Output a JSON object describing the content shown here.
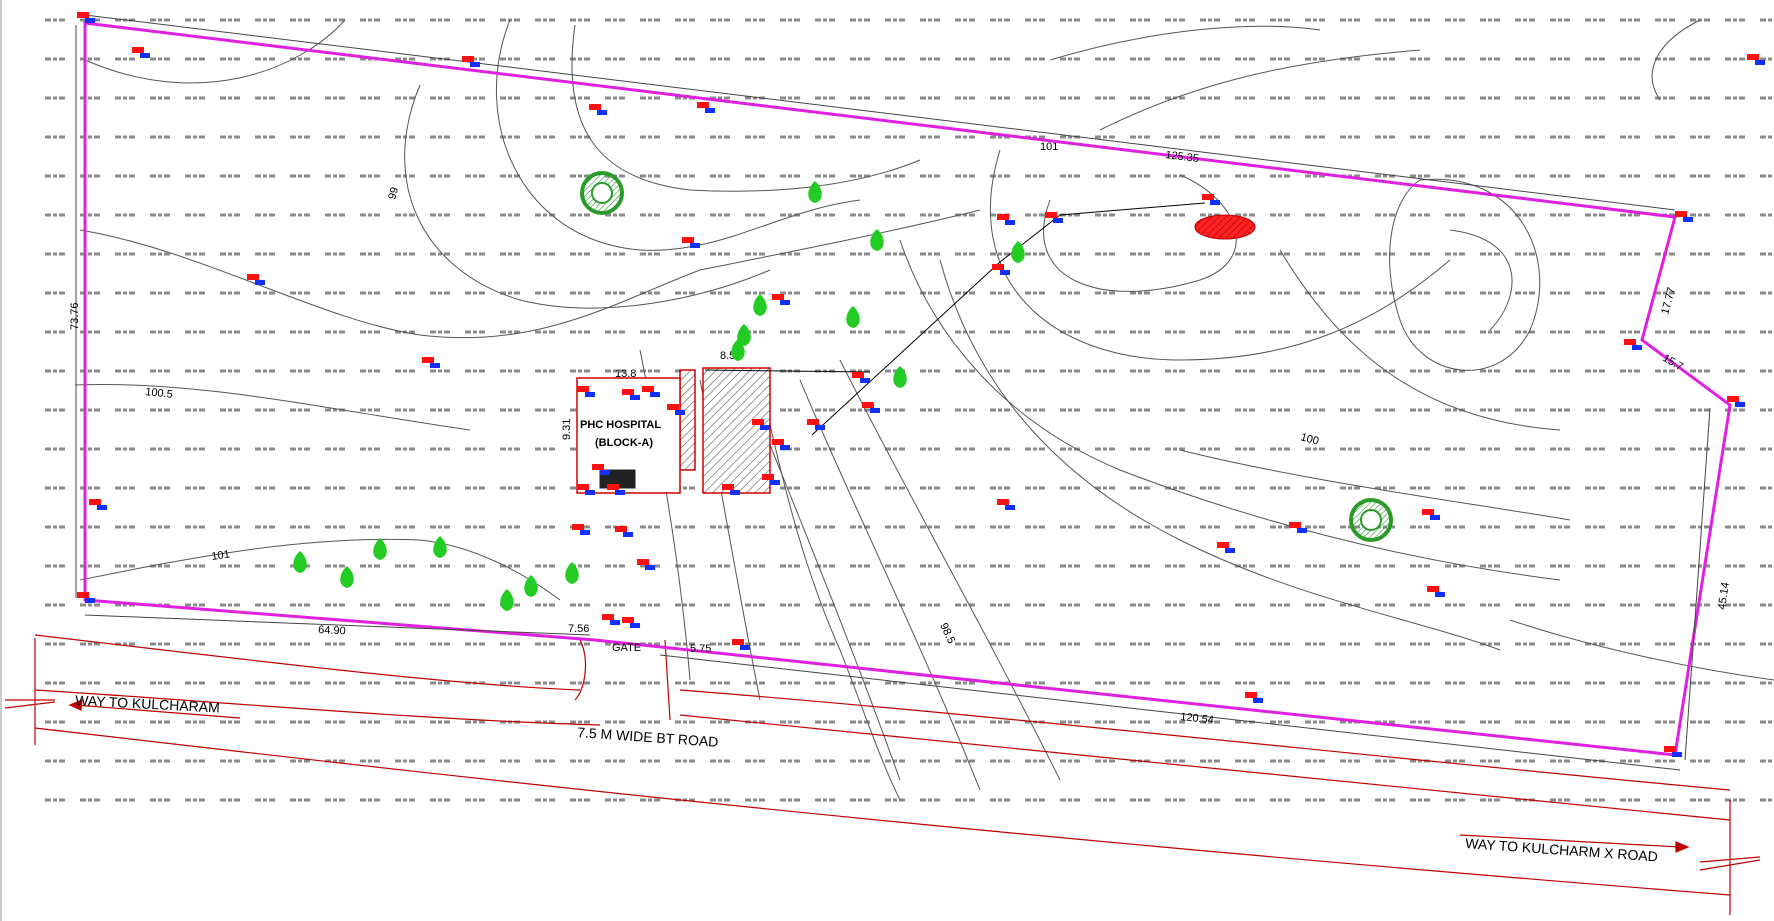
{
  "drawing": {
    "colors": {
      "boundary": "#e020e0",
      "road": "#c00000",
      "contour": "#555555",
      "grid_text": "#8a8a8a",
      "tree": "#22cc22",
      "marker_red": "#ff1010",
      "marker_blue": "#1030ff",
      "building_outline": "#d00000"
    },
    "icons": {
      "tree": "tree-icon",
      "survey_point": "survey-point-icon",
      "existing_tree_circle": "tree-circle-icon"
    }
  },
  "labels": {
    "building": [
      "PHC HOSPITAL",
      "(BLOCK-A)"
    ],
    "gate": "GATE",
    "road_width": "7.5 M WIDE BT ROAD",
    "way_left": "WAY TO KULCHARAM",
    "way_right": "WAY TO KULCHARM X ROAD"
  },
  "dimensions": {
    "top": "125.35",
    "left": "73.76",
    "bottom_left": "64.90",
    "bottom_right": "120.54",
    "right_lower": "45.14",
    "right_mid": "15.7",
    "right_upper": "17.77",
    "gate_left": "7.56",
    "gate_right": "5.75",
    "building_top": "13.8",
    "building_side": "9.31",
    "building_offset": "8.52"
  },
  "contour_labels": [
    "100.5",
    "101",
    "99",
    "98.5",
    "100",
    "101"
  ]
}
